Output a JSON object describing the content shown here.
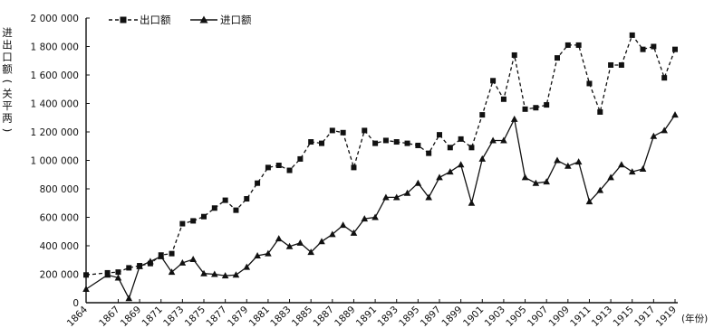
{
  "chart_data": {
    "type": "line",
    "title": "",
    "xlabel": "(年份)",
    "ylabel": "进出口额(关平两)",
    "ylim": [
      0,
      2000000
    ],
    "yticks": [
      0,
      200000,
      400000,
      600000,
      800000,
      1000000,
      1200000,
      1400000,
      1600000,
      1800000,
      2000000
    ],
    "ytick_labels": [
      "0",
      "200 000",
      "400 000",
      "600 000",
      "800 000",
      "1 000 000",
      "1 200 000",
      "1 400 000",
      "1 600 000",
      "1 800 000",
      "2 000 000"
    ],
    "xlim": [
      1864,
      1919
    ],
    "xticks": [
      1864,
      1867,
      1869,
      1871,
      1873,
      1875,
      1877,
      1879,
      1881,
      1883,
      1885,
      1887,
      1889,
      1891,
      1893,
      1895,
      1897,
      1899,
      1901,
      1903,
      1905,
      1907,
      1909,
      1911,
      1913,
      1915,
      1917,
      1919
    ],
    "legend_position": "top-left",
    "grid": false,
    "series": [
      {
        "name": "出口额",
        "style": "dashed",
        "marker": "square",
        "x": [
          1864,
          1866,
          1867,
          1868,
          1869,
          1870,
          1871,
          1872,
          1873,
          1874,
          1875,
          1876,
          1877,
          1878,
          1879,
          1880,
          1881,
          1882,
          1883,
          1884,
          1885,
          1886,
          1887,
          1888,
          1889,
          1890,
          1891,
          1892,
          1893,
          1894,
          1895,
          1896,
          1897,
          1898,
          1899,
          1900,
          1901,
          1902,
          1903,
          1904,
          1905,
          1906,
          1907,
          1908,
          1909,
          1910,
          1911,
          1912,
          1913,
          1914,
          1915,
          1916,
          1917,
          1918,
          1919
        ],
        "values": [
          195000,
          210000,
          215000,
          245000,
          260000,
          275000,
          335000,
          345000,
          555000,
          575000,
          605000,
          665000,
          720000,
          650000,
          730000,
          840000,
          950000,
          965000,
          930000,
          1010000,
          1130000,
          1120000,
          1210000,
          1195000,
          950000,
          1210000,
          1120000,
          1140000,
          1130000,
          1120000,
          1105000,
          1050000,
          1180000,
          1090000,
          1150000,
          1090000,
          1320000,
          1560000,
          1430000,
          1740000,
          1360000,
          1370000,
          1390000,
          1720000,
          1810000,
          1810000,
          1540000,
          1340000,
          1670000,
          1670000,
          1880000,
          1780000,
          1800000,
          1580000,
          1780000
        ]
      },
      {
        "name": "进口额",
        "style": "solid",
        "marker": "triangle",
        "x": [
          1864,
          1866,
          1867,
          1868,
          1869,
          1870,
          1871,
          1872,
          1873,
          1874,
          1875,
          1876,
          1877,
          1878,
          1879,
          1880,
          1881,
          1882,
          1883,
          1884,
          1885,
          1886,
          1887,
          1888,
          1889,
          1890,
          1891,
          1892,
          1893,
          1894,
          1895,
          1896,
          1897,
          1898,
          1899,
          1900,
          1901,
          1902,
          1903,
          1904,
          1905,
          1906,
          1907,
          1908,
          1909,
          1910,
          1911,
          1912,
          1913,
          1914,
          1915,
          1916,
          1917,
          1918,
          1919
        ],
        "values": [
          95000,
          195000,
          175000,
          30000,
          255000,
          290000,
          325000,
          215000,
          280000,
          305000,
          205000,
          200000,
          190000,
          195000,
          250000,
          330000,
          345000,
          450000,
          395000,
          420000,
          355000,
          430000,
          480000,
          545000,
          490000,
          590000,
          600000,
          740000,
          740000,
          770000,
          840000,
          740000,
          880000,
          920000,
          970000,
          700000,
          1010000,
          1140000,
          1140000,
          1290000,
          880000,
          840000,
          850000,
          1000000,
          960000,
          990000,
          710000,
          790000,
          880000,
          970000,
          920000,
          940000,
          1170000,
          1210000,
          1320000
        ]
      }
    ]
  }
}
